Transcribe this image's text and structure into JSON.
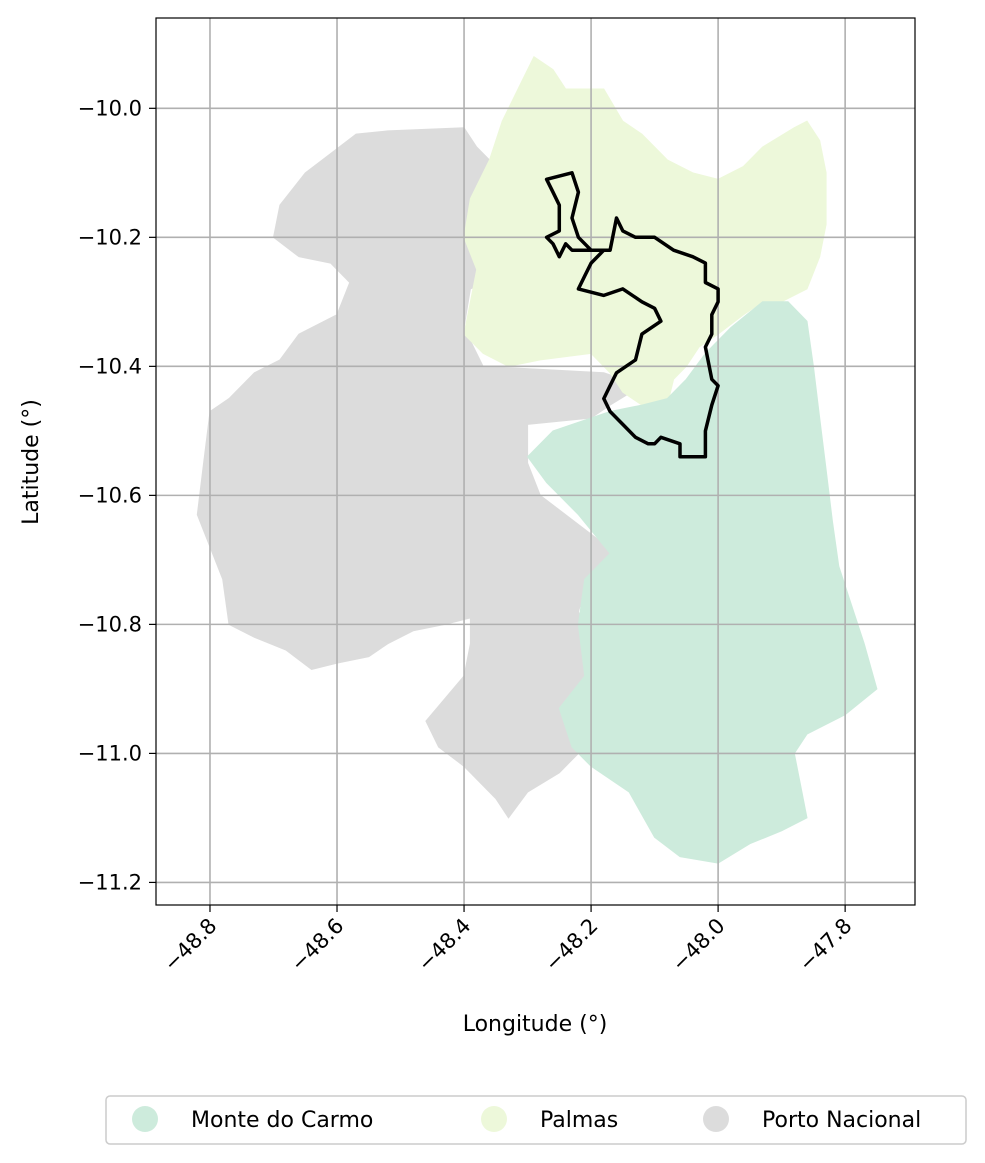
{
  "chart_data": {
    "type": "map",
    "xlabel": "Longitude (°)",
    "ylabel": "Latitude (°)",
    "xlim": [
      -48.885,
      -47.69
    ],
    "ylim": [
      -11.235,
      -9.86
    ],
    "x_ticks": [
      -48.8,
      -48.6,
      -48.4,
      -48.2,
      -48.0,
      -47.8
    ],
    "x_tick_labels": [
      "−48.8",
      "−48.6",
      "−48.4",
      "−48.2",
      "−48.0",
      "−47.8"
    ],
    "y_ticks": [
      -10.0,
      -10.2,
      -10.4,
      -10.6,
      -10.8,
      -11.0,
      -11.2
    ],
    "y_tick_labels": [
      "−10.0",
      "−10.2",
      "−10.4",
      "−10.6",
      "−10.8",
      "−11.0",
      "−11.2"
    ],
    "grid": true,
    "legend_position": "bottom, below axes",
    "legend": [
      {
        "name": "Monte do Carmo",
        "color": "#cdebdc"
      },
      {
        "name": "Palmas",
        "color": "#edf8da"
      },
      {
        "name": "Porto Nacional",
        "color": "#dcdcdc"
      }
    ],
    "regions": [
      {
        "name": "Porto Nacional",
        "color": "#dcdcdc",
        "coords": [
          [
            -48.52,
            -10.035
          ],
          [
            -48.4,
            -10.03
          ],
          [
            -48.38,
            -10.06
          ],
          [
            -48.34,
            -10.1
          ],
          [
            -48.33,
            -10.2
          ],
          [
            -48.34,
            -10.26
          ],
          [
            -48.39,
            -10.28
          ],
          [
            -48.4,
            -10.34
          ],
          [
            -48.37,
            -10.4
          ],
          [
            -48.18,
            -10.41
          ],
          [
            -48.12,
            -10.43
          ],
          [
            -48.17,
            -10.46
          ],
          [
            -48.2,
            -10.48
          ],
          [
            -48.3,
            -10.49
          ],
          [
            -48.3,
            -10.55
          ],
          [
            -48.28,
            -10.6
          ],
          [
            -48.2,
            -10.66
          ],
          [
            -48.16,
            -10.69
          ],
          [
            -48.2,
            -10.72
          ],
          [
            -48.22,
            -10.78
          ],
          [
            -48.2,
            -10.85
          ],
          [
            -48.21,
            -10.93
          ],
          [
            -48.23,
            -10.94
          ],
          [
            -48.22,
            -11.0
          ],
          [
            -48.25,
            -11.03
          ],
          [
            -48.3,
            -11.06
          ],
          [
            -48.33,
            -11.1
          ],
          [
            -48.35,
            -11.07
          ],
          [
            -48.4,
            -11.02
          ],
          [
            -48.44,
            -10.99
          ],
          [
            -48.46,
            -10.95
          ],
          [
            -48.4,
            -10.88
          ],
          [
            -48.39,
            -10.83
          ],
          [
            -48.39,
            -10.79
          ],
          [
            -48.43,
            -10.8
          ],
          [
            -48.48,
            -10.81
          ],
          [
            -48.52,
            -10.83
          ],
          [
            -48.55,
            -10.85
          ],
          [
            -48.6,
            -10.86
          ],
          [
            -48.64,
            -10.87
          ],
          [
            -48.68,
            -10.84
          ],
          [
            -48.73,
            -10.82
          ],
          [
            -48.77,
            -10.8
          ],
          [
            -48.78,
            -10.73
          ],
          [
            -48.8,
            -10.68
          ],
          [
            -48.82,
            -10.63
          ],
          [
            -48.81,
            -10.55
          ],
          [
            -48.8,
            -10.47
          ],
          [
            -48.77,
            -10.45
          ],
          [
            -48.73,
            -10.41
          ],
          [
            -48.69,
            -10.39
          ],
          [
            -48.66,
            -10.35
          ],
          [
            -48.6,
            -10.32
          ],
          [
            -48.58,
            -10.27
          ],
          [
            -48.61,
            -10.24
          ],
          [
            -48.66,
            -10.23
          ],
          [
            -48.7,
            -10.2
          ],
          [
            -48.69,
            -10.15
          ],
          [
            -48.65,
            -10.1
          ],
          [
            -48.61,
            -10.07
          ],
          [
            -48.57,
            -10.04
          ]
        ]
      },
      {
        "name": "Palmas",
        "color": "#edf8da",
        "coords": [
          [
            -48.29,
            -9.92
          ],
          [
            -48.26,
            -9.94
          ],
          [
            -48.24,
            -9.97
          ],
          [
            -48.18,
            -9.97
          ],
          [
            -48.15,
            -10.02
          ],
          [
            -48.12,
            -10.04
          ],
          [
            -48.08,
            -10.08
          ],
          [
            -48.04,
            -10.1
          ],
          [
            -48.0,
            -10.11
          ],
          [
            -47.96,
            -10.09
          ],
          [
            -47.93,
            -10.06
          ],
          [
            -47.88,
            -10.03
          ],
          [
            -47.86,
            -10.02
          ],
          [
            -47.84,
            -10.05
          ],
          [
            -47.83,
            -10.1
          ],
          [
            -47.83,
            -10.18
          ],
          [
            -47.84,
            -10.23
          ],
          [
            -47.86,
            -10.28
          ],
          [
            -47.9,
            -10.3
          ],
          [
            -47.93,
            -10.3
          ],
          [
            -47.96,
            -10.32
          ],
          [
            -48.0,
            -10.35
          ],
          [
            -48.03,
            -10.37
          ],
          [
            -48.05,
            -10.4
          ],
          [
            -48.07,
            -10.42
          ],
          [
            -48.08,
            -10.46
          ],
          [
            -48.12,
            -10.46
          ],
          [
            -48.15,
            -10.44
          ],
          [
            -48.17,
            -10.41
          ],
          [
            -48.2,
            -10.38
          ],
          [
            -48.28,
            -10.39
          ],
          [
            -48.33,
            -10.4
          ],
          [
            -48.37,
            -10.38
          ],
          [
            -48.4,
            -10.35
          ],
          [
            -48.39,
            -10.3
          ],
          [
            -48.38,
            -10.25
          ],
          [
            -48.4,
            -10.2
          ],
          [
            -48.39,
            -10.14
          ],
          [
            -48.36,
            -10.08
          ],
          [
            -48.34,
            -10.02
          ],
          [
            -48.31,
            -9.96
          ]
        ]
      },
      {
        "name": "Monte do Carmo",
        "color": "#cdebdc",
        "coords": [
          [
            -47.93,
            -10.3
          ],
          [
            -47.89,
            -10.3
          ],
          [
            -47.86,
            -10.33
          ],
          [
            -47.85,
            -10.4
          ],
          [
            -47.84,
            -10.48
          ],
          [
            -47.83,
            -10.56
          ],
          [
            -47.82,
            -10.64
          ],
          [
            -47.81,
            -10.71
          ],
          [
            -47.79,
            -10.77
          ],
          [
            -47.77,
            -10.83
          ],
          [
            -47.75,
            -10.9
          ],
          [
            -47.8,
            -10.94
          ],
          [
            -47.86,
            -10.97
          ],
          [
            -47.88,
            -11.0
          ],
          [
            -47.87,
            -11.05
          ],
          [
            -47.86,
            -11.1
          ],
          [
            -47.9,
            -11.12
          ],
          [
            -47.95,
            -11.14
          ],
          [
            -48.0,
            -11.17
          ],
          [
            -48.06,
            -11.16
          ],
          [
            -48.1,
            -11.13
          ],
          [
            -48.14,
            -11.06
          ],
          [
            -48.2,
            -11.02
          ],
          [
            -48.23,
            -10.99
          ],
          [
            -48.25,
            -10.93
          ],
          [
            -48.21,
            -10.88
          ],
          [
            -48.22,
            -10.8
          ],
          [
            -48.21,
            -10.73
          ],
          [
            -48.17,
            -10.69
          ],
          [
            -48.22,
            -10.63
          ],
          [
            -48.27,
            -10.58
          ],
          [
            -48.3,
            -10.54
          ],
          [
            -48.26,
            -10.5
          ],
          [
            -48.17,
            -10.47
          ],
          [
            -48.12,
            -10.46
          ],
          [
            -48.08,
            -10.45
          ],
          [
            -48.05,
            -10.42
          ],
          [
            -48.02,
            -10.38
          ],
          [
            -47.98,
            -10.34
          ]
        ]
      }
    ],
    "outline": {
      "color": "#000000",
      "coords": [
        [
          -48.27,
          -10.11
        ],
        [
          -48.23,
          -10.1
        ],
        [
          -48.22,
          -10.13
        ],
        [
          -48.23,
          -10.17
        ],
        [
          -48.22,
          -10.2
        ],
        [
          -48.2,
          -10.22
        ],
        [
          -48.17,
          -10.22
        ],
        [
          -48.16,
          -10.17
        ],
        [
          -48.15,
          -10.19
        ],
        [
          -48.13,
          -10.2
        ],
        [
          -48.1,
          -10.2
        ],
        [
          -48.07,
          -10.22
        ],
        [
          -48.04,
          -10.23
        ],
        [
          -48.02,
          -10.24
        ],
        [
          -48.02,
          -10.27
        ],
        [
          -48.0,
          -10.28
        ],
        [
          -48.0,
          -10.3
        ],
        [
          -48.01,
          -10.32
        ],
        [
          -48.01,
          -10.35
        ],
        [
          -48.02,
          -10.37
        ],
        [
          -48.01,
          -10.42
        ],
        [
          -48.0,
          -10.43
        ],
        [
          -48.01,
          -10.46
        ],
        [
          -48.02,
          -10.5
        ],
        [
          -48.02,
          -10.54
        ],
        [
          -48.04,
          -10.54
        ],
        [
          -48.06,
          -10.54
        ],
        [
          -48.06,
          -10.52
        ],
        [
          -48.09,
          -10.51
        ],
        [
          -48.1,
          -10.52
        ],
        [
          -48.11,
          -10.52
        ],
        [
          -48.13,
          -10.51
        ],
        [
          -48.15,
          -10.49
        ],
        [
          -48.17,
          -10.47
        ],
        [
          -48.18,
          -10.45
        ],
        [
          -48.17,
          -10.43
        ],
        [
          -48.16,
          -10.41
        ],
        [
          -48.13,
          -10.39
        ],
        [
          -48.12,
          -10.35
        ],
        [
          -48.09,
          -10.33
        ],
        [
          -48.1,
          -10.31
        ],
        [
          -48.12,
          -10.3
        ],
        [
          -48.15,
          -10.28
        ],
        [
          -48.18,
          -10.29
        ],
        [
          -48.22,
          -10.28
        ],
        [
          -48.21,
          -10.26
        ],
        [
          -48.2,
          -10.24
        ],
        [
          -48.18,
          -10.22
        ],
        [
          -48.23,
          -10.22
        ],
        [
          -48.24,
          -10.21
        ],
        [
          -48.25,
          -10.23
        ],
        [
          -48.26,
          -10.21
        ],
        [
          -48.27,
          -10.2
        ],
        [
          -48.25,
          -10.19
        ],
        [
          -48.25,
          -10.15
        ],
        [
          -48.26,
          -10.13
        ]
      ]
    }
  }
}
